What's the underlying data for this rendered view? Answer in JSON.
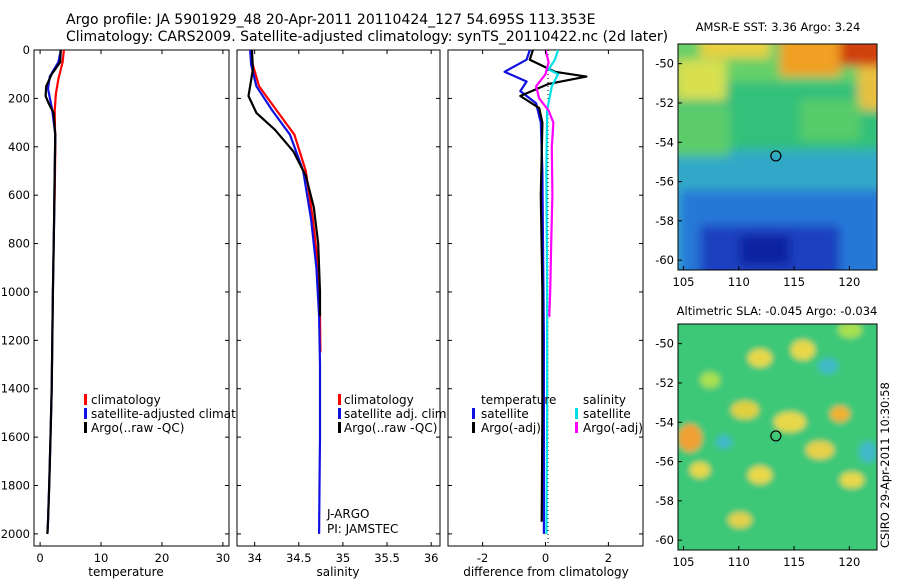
{
  "header": {
    "line1": "Argo profile: JA 5901929_48 20-Apr-2011 20110424_127 54.695S 113.353E",
    "line2": "Climatology: CARS2009. Satellite-adjusted climatology: synTS_20110422.nc (2d later)"
  },
  "colors": {
    "red": "#ff0000",
    "blue": "#1010e0",
    "black": "#000000",
    "cyan": "#00e0e8",
    "magenta": "#ff00ff"
  },
  "chart_data": [
    {
      "type": "line",
      "name": "temperature-profile",
      "xlabel": "temperature",
      "ylabel": "",
      "xlim": [
        -1,
        31
      ],
      "ylim": [
        2050,
        0
      ],
      "xticks": [
        0,
        10,
        20,
        30
      ],
      "yticks": [
        0,
        200,
        400,
        600,
        800,
        1000,
        1200,
        1400,
        1600,
        1800,
        2000
      ],
      "legend": [
        "climatology",
        "satellite-adjusted climatolog",
        "Argo(..raw -QC)"
      ],
      "series": [
        {
          "name": "climatology",
          "color": "red",
          "x": [
            3.9,
            3.7,
            3.0,
            2.6,
            2.4,
            2.5,
            2.4,
            2.3,
            2.2
          ],
          "y": [
            0,
            50,
            120,
            180,
            250,
            400,
            600,
            680,
            680
          ]
        },
        {
          "name": "satellite-adjusted climatology",
          "color": "blue",
          "x": [
            3.4,
            3.0,
            1.6,
            1.3,
            2.0,
            2.5,
            2.4,
            2.3,
            2.1,
            2.0,
            1.9,
            1.7,
            1.5,
            1.3,
            1.2
          ],
          "y": [
            0,
            50,
            110,
            160,
            250,
            350,
            500,
            700,
            1000,
            1200,
            1400,
            1600,
            1800,
            1950,
            2000
          ]
        },
        {
          "name": "Argo(..raw -QC)",
          "color": "black",
          "x": [
            3.4,
            3.3,
            1.9,
            1.0,
            0.9,
            1.4,
            2.2,
            2.5,
            2.4,
            2.3,
            2.1,
            2.0,
            1.9,
            1.7,
            1.5,
            1.3,
            1.2
          ],
          "y": [
            0,
            50,
            100,
            150,
            190,
            220,
            260,
            350,
            500,
            700,
            1000,
            1200,
            1400,
            1600,
            1800,
            1950,
            2000
          ]
        }
      ]
    },
    {
      "type": "line",
      "name": "salinity-profile",
      "xlabel": "salinity",
      "xlim": [
        33.8,
        36.1
      ],
      "ylim": [
        2050,
        0
      ],
      "xticks": [
        34,
        34.5,
        35,
        35.5,
        36
      ],
      "legend": [
        "climatology",
        "satellite adj. clim.",
        "Argo(..raw -QC)"
      ],
      "annotations": [
        "J-ARGO",
        "PI: JAMSTEC"
      ],
      "series": [
        {
          "name": "climatology",
          "color": "red",
          "x": [
            33.95,
            33.97,
            34.05,
            34.25,
            34.45,
            34.58,
            34.66,
            34.72,
            34.74,
            34.745
          ],
          "y": [
            0,
            50,
            150,
            250,
            350,
            500,
            700,
            900,
            1100,
            1250
          ]
        },
        {
          "name": "satellite adj. clim.",
          "color": "blue",
          "x": [
            33.95,
            33.96,
            34.02,
            34.2,
            34.4,
            34.55,
            34.64,
            34.7,
            34.73,
            34.74,
            34.74,
            34.735,
            34.73
          ],
          "y": [
            0,
            60,
            150,
            250,
            350,
            500,
            700,
            900,
            1100,
            1300,
            1600,
            1800,
            2000
          ]
        },
        {
          "name": "Argo(..raw -QC)",
          "color": "black",
          "x": [
            33.97,
            33.98,
            33.93,
            34.02,
            34.23,
            34.44,
            34.58,
            34.67,
            34.72,
            34.74,
            34.74
          ],
          "y": [
            0,
            80,
            190,
            260,
            330,
            420,
            520,
            650,
            800,
            1000,
            1100
          ]
        }
      ]
    },
    {
      "type": "line",
      "name": "difference-profile",
      "xlabel": "difference from climatology",
      "xlim": [
        -3.1,
        3.1
      ],
      "ylim": [
        2050,
        0
      ],
      "xticks": [
        -2,
        0,
        2
      ],
      "legend": [
        "temperature",
        "satellite",
        "Argo(-adj)",
        "salinity",
        "satellite",
        "Argo(-adj)"
      ],
      "series": [
        {
          "name": "temperature satellite",
          "color": "blue",
          "x": [
            -0.5,
            -0.6,
            -1.3,
            -0.6,
            -0.8,
            -0.3,
            -0.15,
            -0.1,
            -0.08,
            -0.05,
            -0.05
          ],
          "y": [
            0,
            40,
            90,
            130,
            170,
            220,
            300,
            500,
            800,
            1200,
            2000
          ]
        },
        {
          "name": "temperature Argo(-adj)",
          "color": "black",
          "x": [
            -0.4,
            -0.5,
            0.3,
            1.3,
            0.1,
            -0.8,
            -0.2,
            -0.1,
            -0.15,
            -0.1,
            -0.1,
            -0.12
          ],
          "y": [
            0,
            40,
            90,
            110,
            140,
            190,
            240,
            300,
            600,
            1000,
            1500,
            1950
          ]
        },
        {
          "name": "salinity satellite",
          "color": "cyan",
          "x": [
            0.4,
            0.3,
            0.1,
            0.4,
            0.2,
            0.05,
            0.03,
            0.05,
            0.05,
            0.03
          ],
          "y": [
            0,
            40,
            80,
            100,
            150,
            250,
            500,
            1000,
            1500,
            2000
          ]
        },
        {
          "name": "salinity Argo(-adj)",
          "color": "magenta",
          "x": [
            0.0,
            0.1,
            0.0,
            -0.3,
            -0.2,
            0.1,
            0.25,
            0.2,
            0.22,
            0.18,
            0.15,
            0.12,
            0.1
          ],
          "y": [
            0,
            50,
            100,
            150,
            200,
            250,
            300,
            400,
            600,
            800,
            1000,
            1100,
            1100
          ]
        }
      ]
    },
    {
      "type": "heatmap",
      "name": "sst-map",
      "title": "AMSR-E SST: 3.36 Argo: 3.24",
      "xlim": [
        104.5,
        122.5
      ],
      "ylim": [
        -60.5,
        -49
      ],
      "xticks": [
        105,
        110,
        115,
        120
      ],
      "yticks": [
        -50,
        -52,
        -54,
        -56,
        -58,
        -60
      ],
      "marker": {
        "lon": 113.353,
        "lat": -54.695
      }
    },
    {
      "type": "heatmap",
      "name": "sla-map",
      "title": "Altimetric SLA: -0.045 Argo: -0.034",
      "xlim": [
        104.5,
        122.5
      ],
      "ylim": [
        -60.5,
        -49
      ],
      "xticks": [
        105,
        110,
        115,
        120
      ],
      "yticks": [
        -50,
        -52,
        -54,
        -56,
        -58,
        -60
      ],
      "marker": {
        "lon": 113.353,
        "lat": -54.695
      }
    }
  ],
  "footer": {
    "side_stamp": "CSIRO 29-Apr-2011 10:30:58"
  }
}
